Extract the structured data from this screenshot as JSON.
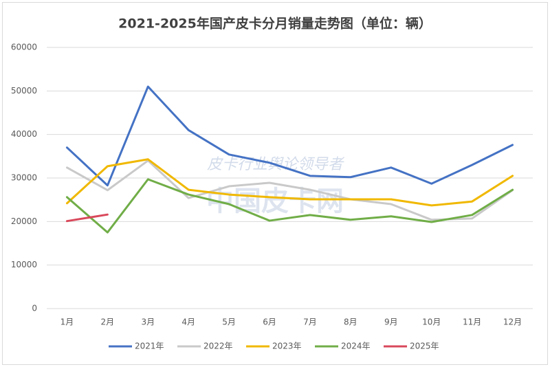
{
  "chart_data": {
    "type": "line",
    "title": "2021-2025年国产皮卡分月销量走势图（单位：辆）",
    "watermark": [
      "皮卡行业舆论领导者",
      "中国皮卡网"
    ],
    "categories": [
      "1月",
      "2月",
      "3月",
      "4月",
      "5月",
      "6月",
      "7月",
      "8月",
      "9月",
      "10月",
      "11月",
      "12月"
    ],
    "series": [
      {
        "name": "2021年",
        "color": "#4472c4",
        "values": [
          37000,
          28300,
          51000,
          41000,
          35400,
          33500,
          30500,
          30200,
          32400,
          28700,
          33000,
          37600
        ]
      },
      {
        "name": "2022年",
        "color": "#c9c9c9",
        "values": [
          32400,
          27200,
          34000,
          25400,
          28100,
          28900,
          27300,
          25100,
          24000,
          20400,
          20700,
          27200
        ]
      },
      {
        "name": "2023年",
        "color": "#f0b800",
        "values": [
          24200,
          32700,
          34300,
          27300,
          26200,
          25600,
          25100,
          25100,
          25100,
          23700,
          24600,
          30500
        ]
      },
      {
        "name": "2024年",
        "color": "#70ad47",
        "values": [
          25600,
          17500,
          29700,
          26200,
          24000,
          20200,
          21500,
          20400,
          21200,
          19900,
          21500,
          27300
        ]
      },
      {
        "name": "2025年",
        "color": "#d9485b",
        "values": [
          20100,
          21600,
          null,
          null,
          null,
          null,
          null,
          null,
          null,
          null,
          null,
          null
        ]
      }
    ],
    "ylim": [
      0,
      60000
    ],
    "yticks": [
      0,
      10000,
      20000,
      30000,
      40000,
      50000,
      60000
    ],
    "grid": true,
    "legend": "bottom"
  }
}
